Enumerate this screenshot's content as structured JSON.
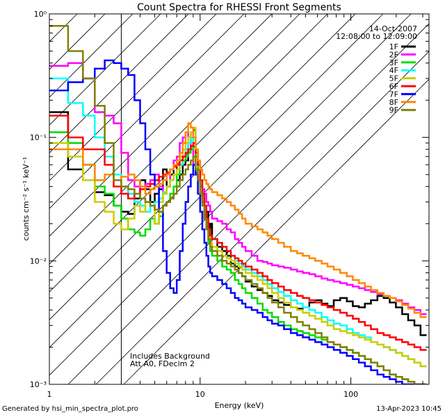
{
  "chart_data": {
    "type": "line",
    "step": true,
    "title": "Count Spectra for RHESSI Front Segments",
    "xlabel": "Energy (keV)",
    "ylabel": "counts cm⁻² s⁻¹ keV⁻¹",
    "xscale": "log",
    "yscale": "log",
    "xlim": [
      1,
      330
    ],
    "ylim": [
      0.001,
      1
    ],
    "x_ticks": [
      {
        "value": 1,
        "label": "1"
      },
      {
        "value": 10,
        "label": "10"
      },
      {
        "value": 100,
        "label": "100"
      }
    ],
    "y_ticks": [
      {
        "value": 0.001,
        "label": "10⁻³"
      },
      {
        "value": 0.01,
        "label": "10⁻²"
      },
      {
        "value": 0.1,
        "label": "10⁻¹"
      },
      {
        "value": 1,
        "label": "10⁰"
      }
    ],
    "shaded_region": {
      "from": 1,
      "to": 3,
      "style": "hatched"
    },
    "date_label": "14-Oct-2007",
    "time_range_label": "12:08:00 to 12:09:00",
    "annotations": [
      "Includes Background",
      "Att A0, FDecim 2"
    ],
    "legend_position": "top-right",
    "bin_edges": [
      1.0,
      1.33,
      1.67,
      2.0,
      2.33,
      2.67,
      3.0,
      3.33,
      3.67,
      4.0,
      4.33,
      4.67,
      5.0,
      5.33,
      5.67,
      6.0,
      6.33,
      6.67,
      7.0,
      7.33,
      7.67,
      8.0,
      8.33,
      8.67,
      9.0,
      9.33,
      9.67,
      10.0,
      10.33,
      10.67,
      11.0,
      11.33,
      11.67,
      12.0,
      13.0,
      14.0,
      15.0,
      16.0,
      17.0,
      18.0,
      19.0,
      20.0,
      22.0,
      24.0,
      26.0,
      28.0,
      30.0,
      33.0,
      36.0,
      40.0,
      44.0,
      48.0,
      53.0,
      58.0,
      64.0,
      70.0,
      77.0,
      85.0,
      94.0,
      103.0,
      113.0,
      124.0,
      136.0,
      150.0,
      165.0,
      181.0,
      199.0,
      219.0,
      240.0,
      264.0,
      290.0,
      318.0
    ],
    "series": [
      {
        "name": "1F",
        "color": "#000000",
        "values": [
          0.16,
          0.055,
          0.06,
          0.036,
          0.034,
          0.028,
          0.025,
          0.024,
          0.032,
          0.045,
          0.038,
          0.03,
          0.035,
          0.038,
          0.055,
          0.04,
          0.05,
          0.058,
          0.045,
          0.05,
          0.06,
          0.065,
          0.09,
          0.11,
          0.115,
          0.07,
          0.06,
          0.04,
          0.03,
          0.022,
          0.025,
          0.018,
          0.02,
          0.015,
          0.013,
          0.012,
          0.011,
          0.0095,
          0.009,
          0.008,
          0.0075,
          0.0068,
          0.0062,
          0.0058,
          0.0055,
          0.0052,
          0.0048,
          0.0046,
          0.0044,
          0.0042,
          0.0041,
          0.0042,
          0.0046,
          0.0048,
          0.0045,
          0.0043,
          0.0048,
          0.005,
          0.0047,
          0.0043,
          0.0042,
          0.0045,
          0.0048,
          0.0052,
          0.005,
          0.0046,
          0.0042,
          0.0037,
          0.0033,
          0.003,
          0.0025
        ]
      },
      {
        "name": "2F",
        "color": "#ff00ff",
        "values": [
          0.38,
          0.4,
          0.3,
          0.16,
          0.15,
          0.13,
          0.075,
          0.045,
          0.04,
          0.038,
          0.042,
          0.045,
          0.05,
          0.04,
          0.035,
          0.04,
          0.055,
          0.065,
          0.07,
          0.09,
          0.1,
          0.11,
          0.1,
          0.08,
          0.06,
          0.05,
          0.045,
          0.04,
          0.038,
          0.035,
          0.03,
          0.028,
          0.025,
          0.022,
          0.021,
          0.02,
          0.018,
          0.017,
          0.015,
          0.014,
          0.013,
          0.012,
          0.011,
          0.01,
          0.0098,
          0.0095,
          0.0092,
          0.009,
          0.0088,
          0.0085,
          0.0082,
          0.008,
          0.0078,
          0.0075,
          0.0072,
          0.007,
          0.0068,
          0.0066,
          0.0064,
          0.0062,
          0.006,
          0.0058,
          0.0056,
          0.0054,
          0.0052,
          0.005,
          0.0048,
          0.0045,
          0.0042,
          0.004,
          0.0037
        ]
      },
      {
        "name": "3F",
        "color": "#00dd00",
        "values": [
          0.11,
          0.09,
          0.06,
          0.04,
          0.035,
          0.028,
          0.022,
          0.018,
          0.017,
          0.016,
          0.018,
          0.022,
          0.02,
          0.023,
          0.028,
          0.03,
          0.035,
          0.04,
          0.05,
          0.06,
          0.065,
          0.07,
          0.075,
          0.08,
          0.085,
          0.07,
          0.055,
          0.04,
          0.03,
          0.022,
          0.018,
          0.014,
          0.012,
          0.011,
          0.01,
          0.009,
          0.0085,
          0.008,
          0.007,
          0.0065,
          0.006,
          0.0055,
          0.005,
          0.0045,
          0.004,
          0.0038,
          0.0035,
          0.0032,
          0.003,
          0.0028,
          0.0027,
          0.0026,
          0.0025,
          0.0024,
          0.0023,
          0.0022,
          0.0021,
          0.002,
          0.0019,
          0.0018,
          0.0017,
          0.0016,
          0.0015,
          0.0014,
          0.0013,
          0.0012,
          0.00115,
          0.0011,
          0.00105,
          0.001,
          0.001
        ]
      },
      {
        "name": "4F",
        "color": "#00ffff",
        "values": [
          0.3,
          0.19,
          0.15,
          0.1,
          0.07,
          0.05,
          0.04,
          0.035,
          0.03,
          0.028,
          0.025,
          0.028,
          0.03,
          0.032,
          0.036,
          0.04,
          0.045,
          0.05,
          0.055,
          0.06,
          0.07,
          0.08,
          0.09,
          0.1,
          0.09,
          0.075,
          0.06,
          0.045,
          0.035,
          0.028,
          0.022,
          0.018,
          0.016,
          0.015,
          0.014,
          0.013,
          0.012,
          0.011,
          0.01,
          0.0095,
          0.009,
          0.0085,
          0.008,
          0.0075,
          0.007,
          0.0065,
          0.006,
          0.0056,
          0.0052,
          0.0048,
          0.0045,
          0.0042,
          0.004,
          0.0038,
          0.0035,
          0.0033,
          0.0031,
          0.003,
          0.0028,
          0.0026,
          0.0025,
          0.0024,
          0.0022,
          0.0021,
          0.002,
          0.0019,
          0.0018,
          0.0017,
          0.0016,
          0.0015,
          0.0014
        ]
      },
      {
        "name": "5F",
        "color": "#cccc00",
        "values": [
          0.09,
          0.07,
          0.045,
          0.03,
          0.025,
          0.02,
          0.018,
          0.022,
          0.028,
          0.025,
          0.03,
          0.028,
          0.02,
          0.03,
          0.035,
          0.04,
          0.045,
          0.05,
          0.055,
          0.07,
          0.08,
          0.09,
          0.1,
          0.11,
          0.12,
          0.08,
          0.06,
          0.045,
          0.035,
          0.025,
          0.02,
          0.016,
          0.014,
          0.013,
          0.012,
          0.011,
          0.0105,
          0.01,
          0.0095,
          0.009,
          0.0085,
          0.008,
          0.0075,
          0.007,
          0.0065,
          0.006,
          0.0055,
          0.005,
          0.0046,
          0.0042,
          0.004,
          0.0038,
          0.0036,
          0.0034,
          0.0032,
          0.003,
          0.0028,
          0.0027,
          0.0026,
          0.0025,
          0.0024,
          0.0023,
          0.0022,
          0.0021,
          0.002,
          0.0019,
          0.0018,
          0.0017,
          0.0016,
          0.0015,
          0.0014
        ]
      },
      {
        "name": "6F",
        "color": "#ff0000",
        "values": [
          0.15,
          0.1,
          0.08,
          0.08,
          0.06,
          0.04,
          0.035,
          0.032,
          0.035,
          0.038,
          0.04,
          0.042,
          0.045,
          0.048,
          0.05,
          0.052,
          0.055,
          0.058,
          0.06,
          0.065,
          0.07,
          0.075,
          0.08,
          0.085,
          0.09,
          0.075,
          0.06,
          0.045,
          0.035,
          0.028,
          0.022,
          0.018,
          0.016,
          0.015,
          0.014,
          0.013,
          0.012,
          0.011,
          0.0105,
          0.01,
          0.0095,
          0.009,
          0.0085,
          0.008,
          0.0075,
          0.007,
          0.0066,
          0.0062,
          0.0058,
          0.0055,
          0.0052,
          0.005,
          0.0048,
          0.0046,
          0.0044,
          0.0042,
          0.004,
          0.0038,
          0.0036,
          0.0034,
          0.0032,
          0.003,
          0.0028,
          0.0026,
          0.0025,
          0.0024,
          0.0023,
          0.0022,
          0.0021,
          0.002,
          0.0019
        ]
      },
      {
        "name": "7F",
        "color": "#0000ff",
        "values": [
          0.24,
          0.28,
          0.3,
          0.36,
          0.42,
          0.4,
          0.36,
          0.32,
          0.2,
          0.13,
          0.08,
          0.05,
          0.04,
          0.025,
          0.012,
          0.008,
          0.006,
          0.0055,
          0.007,
          0.012,
          0.02,
          0.03,
          0.04,
          0.05,
          0.06,
          0.05,
          0.035,
          0.025,
          0.018,
          0.014,
          0.011,
          0.009,
          0.008,
          0.0075,
          0.007,
          0.0065,
          0.006,
          0.0055,
          0.005,
          0.0048,
          0.0045,
          0.0042,
          0.004,
          0.0038,
          0.0035,
          0.0033,
          0.0031,
          0.003,
          0.0028,
          0.0026,
          0.0025,
          0.0024,
          0.0023,
          0.0022,
          0.0021,
          0.002,
          0.0019,
          0.0018,
          0.0017,
          0.0016,
          0.0015,
          0.0014,
          0.0013,
          0.0012,
          0.00115,
          0.0011,
          0.00105,
          0.001,
          0.001,
          0.001,
          0.001
        ]
      },
      {
        "name": "8F",
        "color": "#ff8800",
        "values": [
          0.08,
          0.08,
          0.06,
          0.045,
          0.05,
          0.045,
          0.048,
          0.05,
          0.045,
          0.04,
          0.035,
          0.038,
          0.04,
          0.042,
          0.045,
          0.05,
          0.055,
          0.06,
          0.065,
          0.075,
          0.09,
          0.11,
          0.13,
          0.12,
          0.1,
          0.08,
          0.065,
          0.055,
          0.05,
          0.045,
          0.042,
          0.04,
          0.038,
          0.036,
          0.034,
          0.032,
          0.03,
          0.028,
          0.026,
          0.024,
          0.022,
          0.02,
          0.019,
          0.018,
          0.017,
          0.016,
          0.015,
          0.014,
          0.013,
          0.012,
          0.0115,
          0.011,
          0.0105,
          0.01,
          0.0095,
          0.009,
          0.0085,
          0.008,
          0.0075,
          0.007,
          0.0066,
          0.0062,
          0.0058,
          0.0055,
          0.0052,
          0.005,
          0.0047,
          0.0044,
          0.0041,
          0.0038,
          0.0035
        ]
      },
      {
        "name": "9F",
        "color": "#808000",
        "values": [
          0.8,
          0.5,
          0.3,
          0.18,
          0.09,
          0.045,
          0.04,
          0.038,
          0.035,
          0.032,
          0.03,
          0.028,
          0.026,
          0.025,
          0.028,
          0.03,
          0.032,
          0.035,
          0.04,
          0.045,
          0.05,
          0.055,
          0.06,
          0.065,
          0.07,
          0.055,
          0.045,
          0.035,
          0.028,
          0.022,
          0.018,
          0.015,
          0.013,
          0.012,
          0.011,
          0.01,
          0.0095,
          0.009,
          0.0085,
          0.008,
          0.0075,
          0.007,
          0.0065,
          0.006,
          0.0055,
          0.005,
          0.0046,
          0.0042,
          0.0038,
          0.0035,
          0.0032,
          0.003,
          0.0028,
          0.0026,
          0.0024,
          0.0022,
          0.0021,
          0.002,
          0.0019,
          0.0018,
          0.0017,
          0.0016,
          0.0015,
          0.0014,
          0.0013,
          0.0012,
          0.00115,
          0.0011,
          0.00105,
          0.001,
          0.001
        ]
      }
    ]
  },
  "footer": {
    "generated_by": "Generated by hsi_min_spectra_plot.pro",
    "timestamp": "13-Apr-2023 10:45"
  }
}
